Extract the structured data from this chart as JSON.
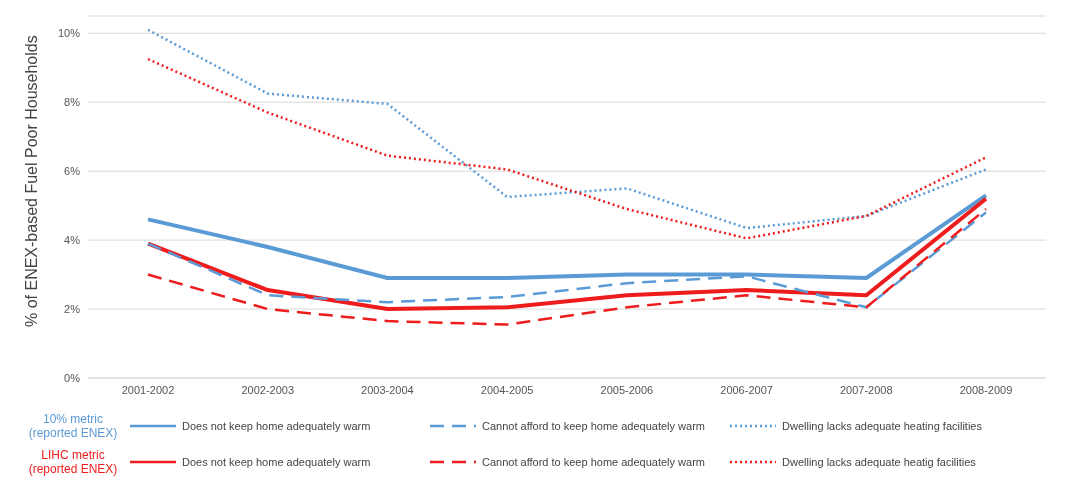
{
  "chart_data": {
    "type": "line",
    "ylabel": "% of ENEX-based Fuel Poor Households",
    "categories": [
      "2001-2002",
      "2002-2003",
      "2003-2004",
      "2004-2005",
      "2005-2006",
      "2006-2007",
      "2007-2008",
      "2008-2009"
    ],
    "series": [
      {
        "name": "Does not keep home adequately warm",
        "color": "#5b9bd5",
        "line_style": "solid",
        "values": [
          4.6,
          3.8,
          2.9,
          2.9,
          3.0,
          3.0,
          2.9,
          5.3
        ]
      },
      {
        "name": "Cannot afford to keep home adequately warm",
        "color": "#5b9bd5",
        "line_style": "dashed",
        "values": [
          3.9,
          2.4,
          2.2,
          2.35,
          2.75,
          2.95,
          2.05,
          4.8
        ]
      },
      {
        "name": "Dwelling lacks adequate heating facilities",
        "color": "#5b9bd5",
        "line_style": "dotted",
        "values": [
          10.1,
          8.25,
          7.95,
          5.25,
          5.5,
          4.35,
          4.7,
          6.05
        ]
      },
      {
        "name": "Does not keep home adequately warm",
        "color": "#ee1c1c",
        "line_style": "solid",
        "values": [
          3.9,
          2.55,
          2.0,
          2.05,
          2.4,
          2.55,
          2.4,
          5.2
        ]
      },
      {
        "name": "Cannot afford to keep home adequately warm",
        "color": "#ee1c1c",
        "line_style": "dashed",
        "values": [
          3.0,
          2.0,
          1.65,
          1.55,
          2.05,
          2.4,
          2.05,
          4.9
        ]
      },
      {
        "name": "Dwelling lacks adequate heatig facilities",
        "color": "#ee1c1c",
        "line_style": "dotted",
        "values": [
          9.25,
          7.7,
          6.45,
          6.05,
          4.9,
          4.05,
          4.7,
          6.4
        ]
      }
    ],
    "annotations": [
      "10% metric (reported ENEX)",
      "LIHC metric (reported ENEX)"
    ],
    "ylim": [
      0,
      10.5
    ],
    "yticks": [
      {
        "value": 0,
        "label": "0%"
      },
      {
        "value": 2,
        "label": "2%"
      },
      {
        "value": 4,
        "label": "4%"
      },
      {
        "value": 6,
        "label": "6%"
      },
      {
        "value": 8,
        "label": "8%"
      },
      {
        "value": 10,
        "label": "10%"
      }
    ],
    "grid": "y",
    "legend": "bottom",
    "marker": "none"
  }
}
